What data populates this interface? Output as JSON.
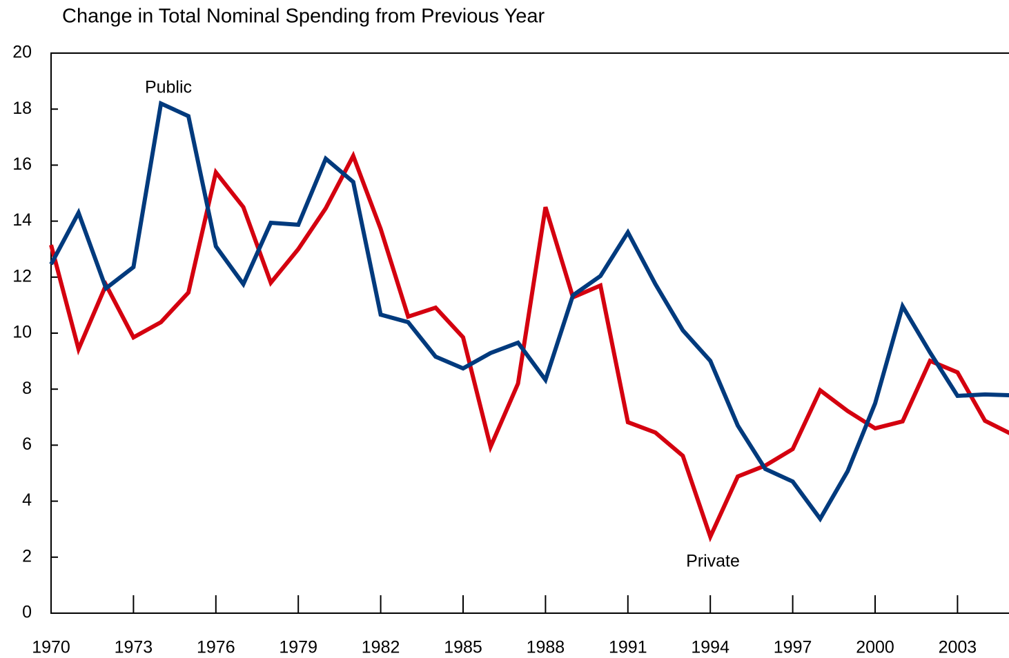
{
  "chart_data": {
    "type": "line",
    "title": "Change in Total Nominal Spending from Previous Year",
    "x": [
      1970,
      1971,
      1972,
      1973,
      1974,
      1975,
      1976,
      1977,
      1978,
      1979,
      1980,
      1981,
      1982,
      1983,
      1984,
      1985,
      1986,
      1987,
      1988,
      1989,
      1990,
      1991,
      1992,
      1993,
      1994,
      1995,
      1996,
      1997,
      1998,
      1999,
      2000,
      2001,
      2002,
      2003,
      2004,
      2005
    ],
    "series": [
      {
        "name": "Public",
        "color": "#003a7d",
        "values": [
          12.46,
          14.3,
          11.6,
          12.36,
          18.2,
          17.75,
          13.1,
          11.75,
          13.94,
          13.87,
          16.23,
          15.4,
          10.66,
          10.39,
          9.16,
          8.74,
          9.29,
          9.66,
          8.33,
          11.35,
          12.04,
          13.6,
          11.75,
          10.1,
          9.01,
          6.7,
          5.15,
          4.7,
          3.37,
          5.07,
          7.49,
          10.96,
          9.31,
          7.76,
          7.81,
          7.78
        ]
      },
      {
        "name": "Private",
        "color": "#d4000f",
        "values": [
          13.15,
          9.43,
          11.72,
          9.85,
          10.39,
          11.45,
          15.74,
          14.5,
          11.8,
          13.0,
          14.46,
          16.33,
          13.72,
          10.59,
          10.91,
          9.85,
          5.94,
          8.2,
          14.5,
          11.28,
          11.7,
          6.82,
          6.45,
          5.62,
          2.73,
          4.88,
          5.27,
          5.86,
          7.96,
          7.22,
          6.6,
          6.85,
          9.01,
          8.6,
          6.87,
          6.38
        ]
      }
    ],
    "xlim": [
      1970,
      2005
    ],
    "xticks": [
      1970,
      1973,
      1976,
      1979,
      1982,
      1985,
      1988,
      1991,
      1994,
      1997,
      2000,
      2003
    ],
    "ylim": [
      0,
      20
    ],
    "yticks": [
      0,
      2,
      4,
      6,
      8,
      10,
      12,
      14,
      16,
      18,
      20
    ]
  }
}
